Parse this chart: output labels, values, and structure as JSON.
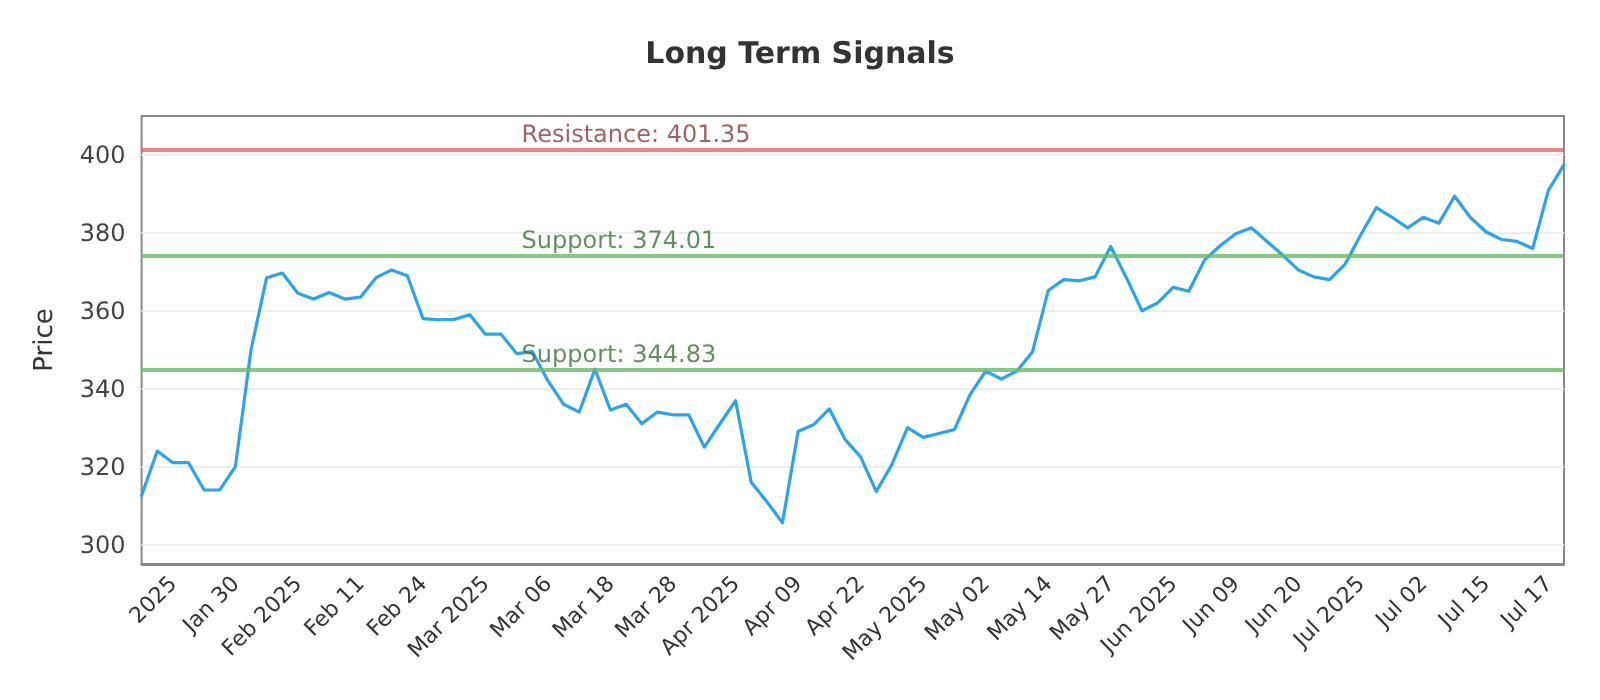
{
  "chart_data": {
    "type": "line",
    "title": "Long Term Signals",
    "ylabel": "Price",
    "categories": [
      null,
      null,
      "2025",
      null,
      null,
      null,
      "Jan 30",
      null,
      null,
      null,
      "Feb 2025",
      null,
      null,
      null,
      "Feb 11",
      null,
      null,
      null,
      "Feb 24",
      null,
      null,
      null,
      "Mar 2025",
      null,
      null,
      null,
      "Mar 06",
      null,
      null,
      null,
      "Mar 18",
      null,
      null,
      null,
      "Mar 28",
      null,
      null,
      null,
      "Apr 2025",
      null,
      null,
      null,
      "Apr 09",
      null,
      null,
      null,
      "Apr 22",
      null,
      null,
      null,
      "May 2025",
      null,
      null,
      null,
      "May 02",
      null,
      null,
      null,
      "May 14",
      null,
      null,
      null,
      "May 27",
      null,
      null,
      null,
      "Jun 2025",
      null,
      null,
      null,
      "Jun 09",
      null,
      null,
      null,
      "Jun 20",
      null,
      null,
      null,
      "Jul 2025",
      null,
      null,
      null,
      "Jul 02",
      null,
      null,
      null,
      "Jul 15",
      null,
      null,
      null,
      "Jul 17",
      null
    ],
    "series": [
      {
        "color": "#2ea3e6",
        "values": [
          312.6,
          324,
          321,
          321,
          314,
          314,
          320,
          350,
          368.5,
          369.7,
          364.5,
          363,
          364.7,
          363,
          363.5,
          368.5,
          370.5,
          369,
          358,
          357.7,
          357.8,
          359,
          354,
          354,
          349,
          349.5,
          342,
          336,
          334,
          345,
          334.5,
          336,
          331,
          334,
          333.3,
          333.3,
          325,
          331,
          336.9,
          316,
          311,
          305.6,
          329,
          330.8,
          334.8,
          327,
          322.5,
          313.6,
          320.5,
          330,
          327.5,
          328.5,
          329.5,
          338.5,
          344.5,
          342.5,
          344.5,
          349.5,
          365.2,
          368,
          367.7,
          368.7,
          376.5,
          368.5,
          360,
          362,
          366,
          365,
          373,
          376.7,
          379.8,
          381.3,
          377.8,
          374.3,
          370.5,
          368.7,
          368,
          372,
          379.5,
          386.5,
          384,
          381.3,
          384,
          382.5,
          389.4,
          384,
          380.3,
          378.3,
          377.8,
          376,
          390.9,
          397.5
        ]
      }
    ],
    "ylim": [
      295,
      410
    ],
    "yticks": [
      300,
      320,
      340,
      360,
      380,
      400
    ],
    "grid": "y",
    "marker": "none",
    "line_style": "solid",
    "ref_lines": [
      {
        "axis": "y",
        "value": 401.35,
        "label": "Resistance: 401.35",
        "color": "#e06666"
      },
      {
        "axis": "y",
        "value": 374.01,
        "label": "Support: 374.01",
        "color": "#66bb66"
      },
      {
        "axis": "y",
        "value": 344.83,
        "label": "Support: 344.83",
        "color": "#66bb66"
      }
    ]
  }
}
